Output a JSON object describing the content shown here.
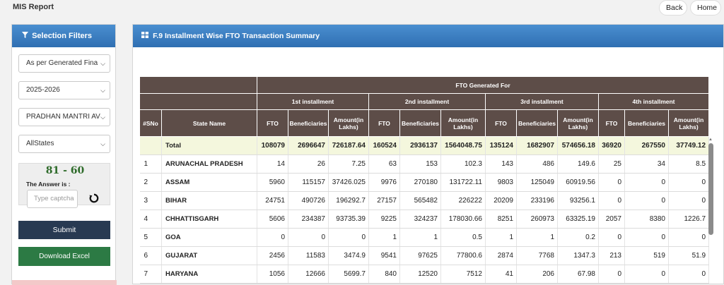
{
  "app": {
    "title": "MIS Report"
  },
  "nav": {
    "back": "Back",
    "home": "Home"
  },
  "sidebar": {
    "heading": "Selection Filters",
    "filters": [
      {
        "value": "As per Generated Fina"
      },
      {
        "value": "2025-2026"
      },
      {
        "value": "PRADHAN MANTRI AV"
      },
      {
        "value": "AllStates"
      }
    ],
    "captcha": {
      "question": "81 - 60",
      "answer_label": "The Answer is :",
      "input_placeholder": "Type captcha"
    },
    "submit": "Submit",
    "download": "Download Excel"
  },
  "report": {
    "title": "F.9 Installment Wise FTO Transaction Summary",
    "header_group": "FTO Generated For",
    "installments": [
      "1st installment",
      "2nd installment",
      "3rd installment",
      "4th installment"
    ],
    "col_sno": "#SNo",
    "col_state": "State Name",
    "sub_cols": [
      "FTO",
      "Beneficiaries",
      "Amount(in Lakhs)"
    ],
    "total_row": {
      "sno": "",
      "state": "Total",
      "values": [
        "108079",
        "2696647",
        "726187.64",
        "160524",
        "2936137",
        "1564048.75",
        "135124",
        "1682907",
        "574656.18",
        "36920",
        "267550",
        "37749.12"
      ]
    },
    "rows": [
      {
        "sno": "1",
        "state": "ARUNACHAL PRADESH",
        "values": [
          "14",
          "26",
          "7.25",
          "63",
          "153",
          "102.3",
          "143",
          "486",
          "149.6",
          "25",
          "34",
          "8.5"
        ]
      },
      {
        "sno": "2",
        "state": "ASSAM",
        "values": [
          "5960",
          "115157",
          "37426.025",
          "9976",
          "270180",
          "131722.11",
          "9803",
          "125049",
          "60919.56",
          "0",
          "0",
          "0"
        ]
      },
      {
        "sno": "3",
        "state": "BIHAR",
        "values": [
          "24751",
          "490726",
          "196292.7",
          "27157",
          "565482",
          "226222",
          "20209",
          "233196",
          "93256.1",
          "0",
          "0",
          "0"
        ]
      },
      {
        "sno": "4",
        "state": "CHHATTISGARH",
        "values": [
          "5606",
          "234387",
          "93735.39",
          "9225",
          "324237",
          "178030.66",
          "8251",
          "260973",
          "63325.19",
          "2057",
          "8380",
          "1226.7"
        ]
      },
      {
        "sno": "5",
        "state": "GOA",
        "values": [
          "0",
          "0",
          "0",
          "1",
          "1",
          "0.5",
          "1",
          "1",
          "0.2",
          "0",
          "0",
          "0"
        ]
      },
      {
        "sno": "6",
        "state": "GUJARAT",
        "values": [
          "2456",
          "11583",
          "3474.9",
          "9541",
          "97625",
          "77800.6",
          "2874",
          "7768",
          "1347.3",
          "213",
          "519",
          "51.9"
        ]
      },
      {
        "sno": "7",
        "state": "HARYANA",
        "values": [
          "1056",
          "12666",
          "5699.7",
          "840",
          "12520",
          "7512",
          "41",
          "206",
          "67.98",
          "0",
          "0",
          "0"
        ]
      }
    ]
  }
}
